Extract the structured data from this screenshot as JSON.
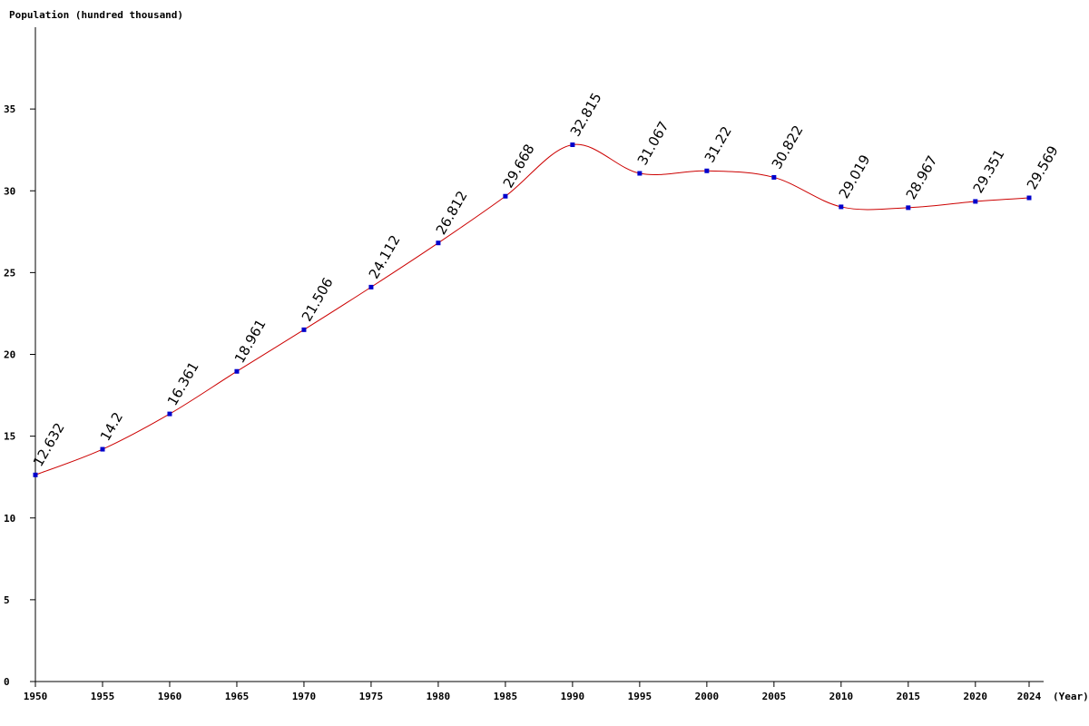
{
  "chart_data": {
    "type": "line",
    "ylabel": "Population (hundred thousand)",
    "xlabel": "(Year)",
    "x": [
      1950,
      1955,
      1960,
      1965,
      1970,
      1975,
      1980,
      1985,
      1990,
      1995,
      2000,
      2005,
      2010,
      2015,
      2020,
      2024
    ],
    "values": [
      12.632,
      14.2,
      16.361,
      18.961,
      21.506,
      24.112,
      26.812,
      29.668,
      32.815,
      31.067,
      31.22,
      30.822,
      29.019,
      28.967,
      29.351,
      29.569
    ],
    "value_labels": [
      "12.632",
      "14.2",
      "16.361",
      "18.961",
      "21.506",
      "24.112",
      "26.812",
      "29.668",
      "32.815",
      "31.067",
      "31.22",
      "30.822",
      "29.019",
      "28.967",
      "29.351",
      "29.569"
    ],
    "x_tick_labels": [
      "1950",
      "1955",
      "1960",
      "1965",
      "1970",
      "1975",
      "1980",
      "1985",
      "1990",
      "1995",
      "2000",
      "2005",
      "2010",
      "2015",
      "2020",
      "2024"
    ],
    "y_ticks": [
      0,
      5,
      10,
      15,
      20,
      25,
      30,
      35
    ],
    "y_tick_labels": [
      "0",
      "5",
      "10",
      "15",
      "20",
      "25",
      "30",
      "35"
    ],
    "ylim": [
      0,
      40
    ],
    "xlim": [
      1950,
      2024
    ],
    "grid": false,
    "legend": "none",
    "line_color": "#cc0000",
    "marker_color": "#0000cc"
  }
}
